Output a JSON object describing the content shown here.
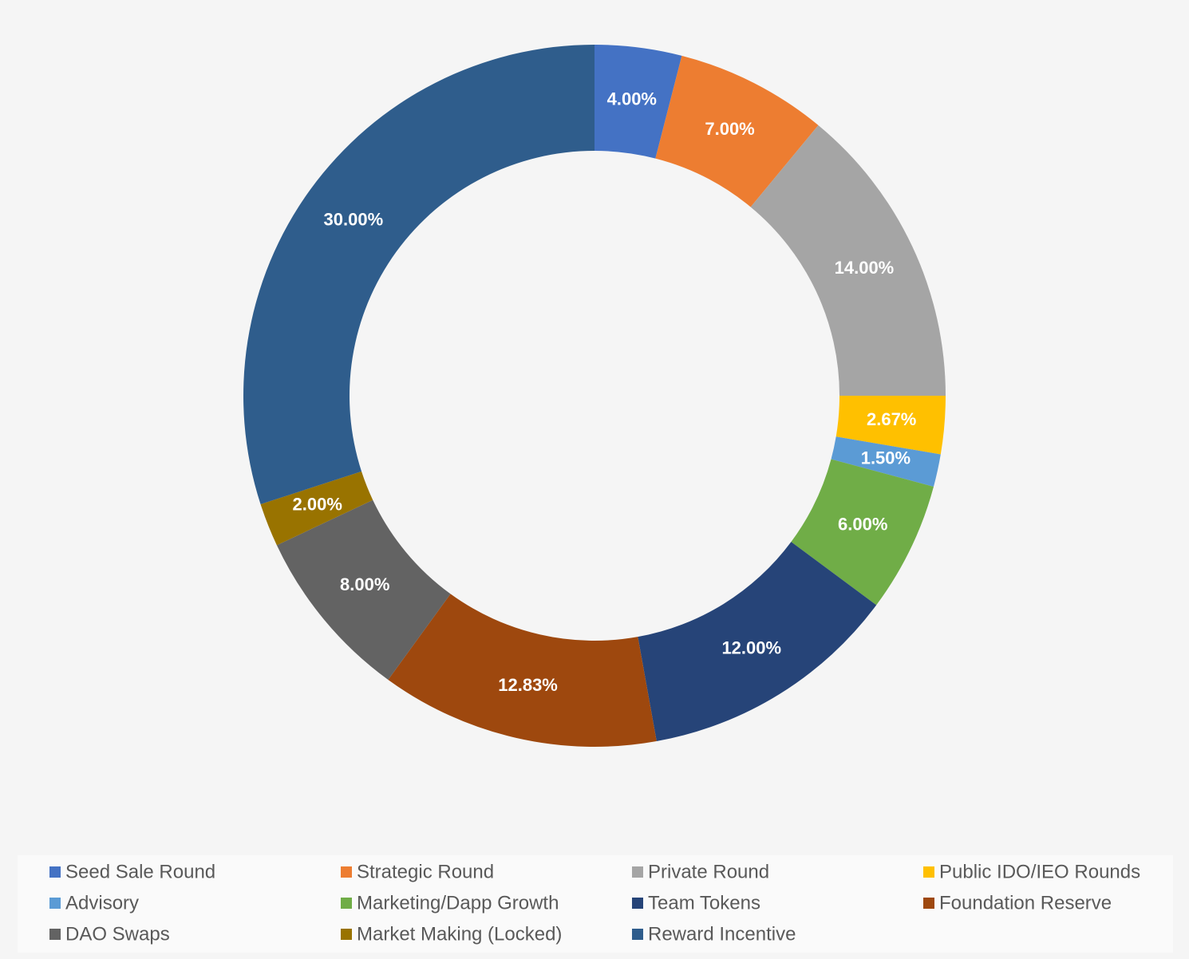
{
  "chart_data": {
    "type": "donut",
    "categories": [
      "Seed Sale Round",
      "Strategic Round",
      "Private Round",
      "Public IDO/IEO Rounds",
      "Advisory",
      "Marketing/Dapp Growth",
      "Team Tokens",
      "Foundation Reserve",
      "DAO Swaps",
      "Market Making (Locked)",
      "Reward Incentive"
    ],
    "values": [
      4,
      7,
      14,
      2.67,
      1.5,
      6,
      12,
      12.83,
      8,
      2,
      30
    ],
    "value_labels": [
      "4.00%",
      "7.00%",
      "14.00%",
      "2.67%",
      "1.50%",
      "6.00%",
      "12.00%",
      "12.83%",
      "8.00%",
      "2.00%",
      "30.00%"
    ],
    "colors": [
      "#4472c4",
      "#ed7d31",
      "#a5a5a5",
      "#ffc000",
      "#5b9bd5",
      "#70ad47",
      "#264478",
      "#9e480e",
      "#636363",
      "#997300",
      "#2f5d8c"
    ],
    "legend": "bottom"
  }
}
